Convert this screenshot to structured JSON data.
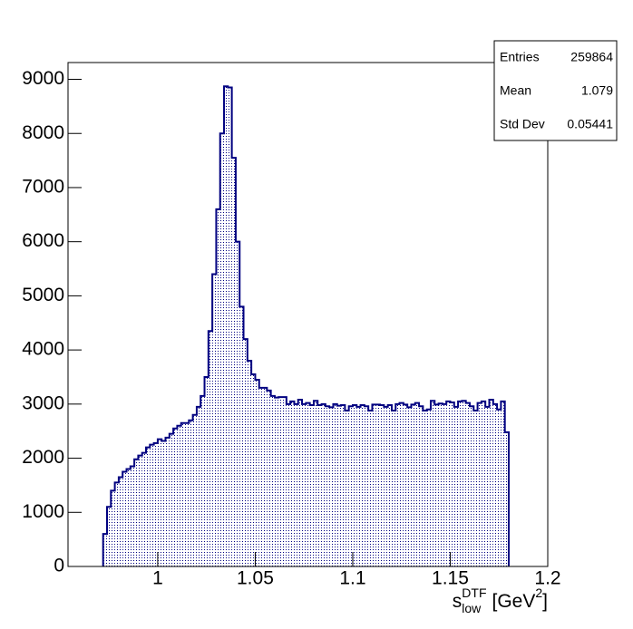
{
  "chart_data": {
    "type": "histogram",
    "bins": [
      0.972,
      0.974,
      0.976,
      0.978,
      0.98,
      0.982,
      0.984,
      0.986,
      0.988,
      0.99,
      0.992,
      0.994,
      0.996,
      0.998,
      1,
      1.002,
      1.004,
      1.006,
      1.008,
      1.01,
      1.012,
      1.014,
      1.016,
      1.018,
      1.02,
      1.022,
      1.024,
      1.026,
      1.028,
      1.03,
      1.032,
      1.034,
      1.036,
      1.038,
      1.04,
      1.042,
      1.044,
      1.046,
      1.048,
      1.05,
      1.052,
      1.054,
      1.056,
      1.058,
      1.06,
      1.062,
      1.064,
      1.066,
      1.068,
      1.07,
      1.072,
      1.074,
      1.076,
      1.078,
      1.08,
      1.082,
      1.084,
      1.086,
      1.088,
      1.09,
      1.092,
      1.094,
      1.096,
      1.098,
      1.1,
      1.102,
      1.104,
      1.106,
      1.108,
      1.11,
      1.112,
      1.114,
      1.116,
      1.118,
      1.12,
      1.122,
      1.124,
      1.126,
      1.128,
      1.13,
      1.132,
      1.134,
      1.136,
      1.138,
      1.14,
      1.142,
      1.144,
      1.146,
      1.148,
      1.15,
      1.152,
      1.154,
      1.156,
      1.158,
      1.16,
      1.162,
      1.164,
      1.166,
      1.168,
      1.17,
      1.172,
      1.174,
      1.176,
      1.178,
      1.18
    ],
    "values": [
      600,
      1100,
      1400,
      1550,
      1650,
      1750,
      1800,
      1850,
      1980,
      2050,
      2100,
      2200,
      2250,
      2280,
      2350,
      2320,
      2380,
      2450,
      2550,
      2600,
      2650,
      2650,
      2700,
      2800,
      2950,
      3150,
      3500,
      4350,
      5400,
      6600,
      8000,
      8870,
      8850,
      7550,
      6000,
      4800,
      4200,
      3800,
      3550,
      3450,
      3300,
      3300,
      3250,
      3150,
      3120,
      3130,
      3130,
      3000,
      3050,
      3000,
      3080,
      3000,
      3020,
      2980,
      3060,
      2980,
      3000,
      2960,
      2940,
      3000,
      2970,
      2980,
      2880,
      2960,
      2980,
      2950,
      2980,
      2960,
      2880,
      2990,
      2990,
      2980,
      2950,
      2980,
      2880,
      3000,
      3020,
      2990,
      2940,
      2990,
      3020,
      2960,
      2880,
      2900,
      3060,
      2990,
      3010,
      3000,
      3050,
      3030,
      2950,
      3050,
      3060,
      3020,
      2960,
      2880,
      3020,
      3050,
      2950,
      3080,
      3000,
      2900,
      3050,
      2480
    ],
    "color": "#000080",
    "xlim": [
      0.954,
      1.2
    ],
    "xticks": [
      1,
      1.05,
      1.1,
      1.15,
      1.2
    ],
    "ylim": [
      0,
      9310
    ],
    "yticks": [
      0,
      1000,
      2000,
      3000,
      4000,
      5000,
      6000,
      7000,
      8000,
      9000
    ],
    "x_label": {
      "base": "s",
      "sub": "low",
      "sup": "DTF",
      "unit": "[GeV",
      "unit_sup": "2",
      "unit_end": "]"
    },
    "stats": [
      {
        "label": "Entries",
        "value": 259864
      },
      {
        "label": "Mean",
        "value": 1.079
      },
      {
        "label": "Std Dev",
        "value": 0.05441
      }
    ]
  }
}
